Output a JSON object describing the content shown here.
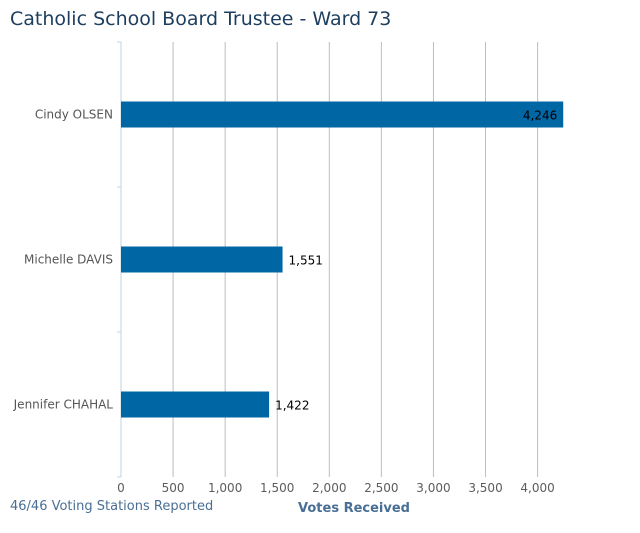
{
  "title": "Catholic School Board Trustee - Ward 73",
  "footer_note": "46/46 Voting Stations Reported",
  "colors": {
    "bar": "#0066a4",
    "grid": "#b8bec4",
    "axis": "#c3d3e0",
    "title": "#1d3e5e",
    "footer": "#4a6f94"
  },
  "chart_data": {
    "type": "bar",
    "orientation": "horizontal",
    "title": "Catholic School Board Trustee - Ward 73",
    "categories": [
      "Cindy OLSEN",
      "Michelle DAVIS",
      "Jennifer CHAHAL"
    ],
    "values": [
      4246,
      1551,
      1422
    ],
    "value_labels": [
      "4,246",
      "1,551",
      "1,422"
    ],
    "xlabel": "Votes Received",
    "ylabel": "",
    "xlim": [
      0,
      4250
    ],
    "x_ticks": [
      0,
      500,
      1000,
      1500,
      2000,
      2500,
      3000,
      3500,
      4000
    ],
    "x_tick_labels": [
      "0",
      "500",
      "1,000",
      "1,500",
      "2,000",
      "2,500",
      "3,000",
      "3,500",
      "4,000"
    ],
    "grid": true,
    "legend": "none"
  }
}
